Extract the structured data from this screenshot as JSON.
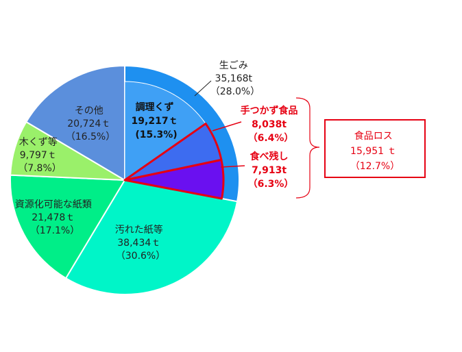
{
  "chart_data": {
    "type": "pie",
    "slices": [
      {
        "name": "生ごみ",
        "value_text": "35,168t",
        "pct_text": "（28.0%）",
        "value": 35168,
        "percent": 28.0,
        "color": "#1e90f0"
      },
      {
        "name": "汚れた紙等",
        "value_text": "38,434ｔ",
        "pct_text": "（30.6%）",
        "value": 38434,
        "percent": 30.6,
        "color": "#00f5c8"
      },
      {
        "name": "資源化可能な紙類",
        "value_text": "21,478ｔ",
        "pct_text": "（17.1%）",
        "value": 21478,
        "percent": 17.1,
        "color": "#00ee88"
      },
      {
        "name": "木くず等",
        "value_text": "9,797ｔ",
        "pct_text": "（7.8%）",
        "value": 9797,
        "percent": 7.8,
        "color": "#9af06a"
      },
      {
        "name": "その他",
        "value_text": "20,724ｔ",
        "pct_text": "（16.5%）",
        "value": 20724,
        "percent": 16.5,
        "color": "#5b8fdc"
      }
    ],
    "sub_slices": [
      {
        "name": "調理くず",
        "value_text": "19,217ｔ",
        "pct_text": "(15.3%)",
        "value": 19217,
        "percent": 15.3,
        "color": "#3fa0f5"
      },
      {
        "name": "手つかず食品",
        "value_text": "8,038t",
        "pct_text": "（6.4%）",
        "value": 8038,
        "percent": 6.4,
        "color": "#3d6cf0"
      },
      {
        "name": "食べ残し",
        "value_text": "7,913t",
        "pct_text": "（6.3%）",
        "value": 7913,
        "percent": 6.3,
        "color": "#6a10f0"
      }
    ],
    "callout": {
      "name": "食品ロス",
      "value_text": "15,951 ｔ",
      "pct_text": "（12.7%）",
      "value": 15951,
      "percent": 12.7
    },
    "highlight_color": "#e60012",
    "label_color": "#222222"
  }
}
